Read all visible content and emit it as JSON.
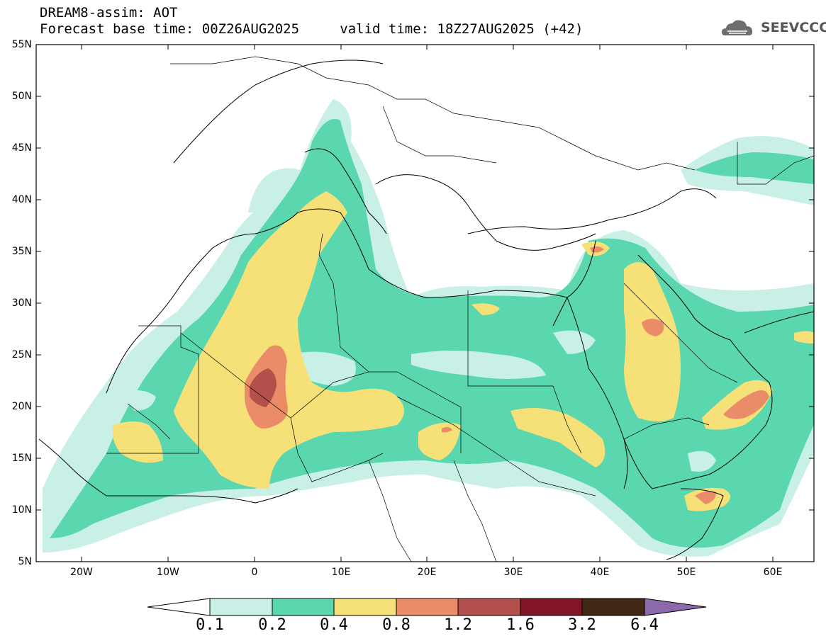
{
  "header": {
    "line1": "DREAM8-assim: AOT",
    "line2_base": "Forecast base time: 00Z26AUG2025",
    "line2_valid": "valid time: 18Z27AUG2025 (+42)"
  },
  "logo": {
    "text": "SEEVCCC",
    "icon": "cloud-logo-icon"
  },
  "map": {
    "lon_range": [
      -25,
      65
    ],
    "lat_range": [
      5,
      55
    ],
    "y_ticks": [
      "5N",
      "10N",
      "15N",
      "20N",
      "25N",
      "30N",
      "35N",
      "40N",
      "45N",
      "50N",
      "55N"
    ],
    "x_ticks": [
      "20W",
      "10W",
      "0",
      "10E",
      "20E",
      "30E",
      "40E",
      "50E",
      "60E"
    ],
    "field": "AOT",
    "colors": {
      "0.1-0.2": "#c8f0e6",
      "0.2-0.4": "#5ad7af",
      "0.4-0.8": "#f5e178",
      "0.8-1.2": "#eb8c69",
      "1.2-1.6": "#b4504b",
      "1.6-3.2": "#821428",
      "3.2-6.4": "#412814",
      ">6.4": "#8c69aa"
    }
  },
  "colorbar": {
    "labels": [
      "0.1",
      "0.2",
      "0.4",
      "0.8",
      "1.2",
      "1.6",
      "3.2",
      "6.4"
    ],
    "colors": [
      "#c8f0e6",
      "#5ad7af",
      "#f5e178",
      "#eb8c69",
      "#b4504b",
      "#821428",
      "#412814"
    ],
    "under_color": "#ffffff",
    "over_color": "#8c69aa"
  }
}
